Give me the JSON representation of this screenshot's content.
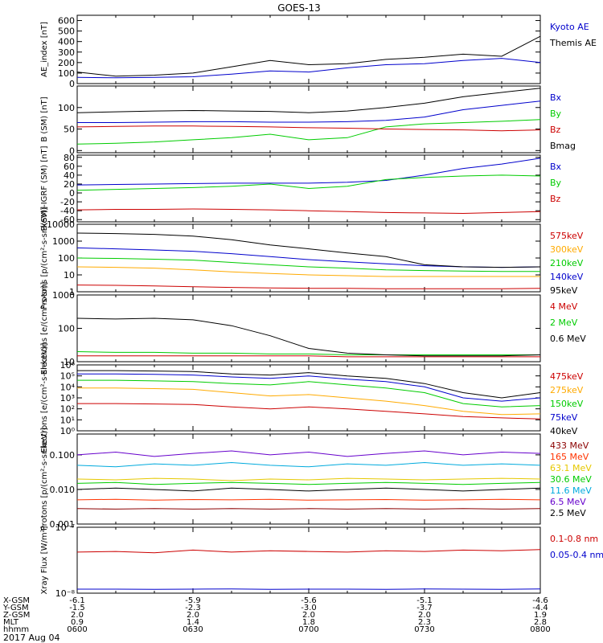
{
  "title": "GOES-13",
  "date_label": "2017 Aug 04",
  "bottom_axis": {
    "row_names": [
      "X-GSM",
      "Y-GSM",
      "Z-GSM",
      "MLT",
      "hhmm"
    ],
    "columns": [
      [
        "-6.1",
        "-1.5",
        "2.0",
        "0.9",
        "0600"
      ],
      [
        "-5.9",
        "-2.3",
        "2.0",
        "1.4",
        "0630"
      ],
      [
        "-5.6",
        "-3.0",
        "2.0",
        "1.8",
        "0700"
      ],
      [
        "-5.1",
        "-3.7",
        "2.0",
        "2.3",
        "0730"
      ],
      [
        "-4.6",
        "-4.4",
        "1.9",
        "2.8",
        "0800"
      ]
    ]
  },
  "chart_data": [
    {
      "type": "line",
      "ylabel": "AE_index [nT]",
      "scale": "linear",
      "ylim": [
        0,
        650
      ],
      "ticks": [
        0,
        100,
        200,
        300,
        400,
        500,
        600
      ],
      "tick_labels": [
        "0",
        "100",
        "200",
        "300",
        "400",
        "500",
        "600"
      ],
      "x": [
        "06:00",
        "06:10",
        "06:20",
        "06:30",
        "06:40",
        "06:50",
        "07:00",
        "07:10",
        "07:20",
        "07:30",
        "07:40",
        "07:50",
        "08:00"
      ],
      "series": [
        {
          "name": "Kyoto AE",
          "color": "#0000cc",
          "values": [
            60,
            55,
            60,
            65,
            90,
            120,
            110,
            150,
            180,
            190,
            220,
            240,
            200
          ]
        },
        {
          "name": "Themis AE",
          "color": "#000000",
          "values": [
            110,
            70,
            80,
            100,
            160,
            220,
            180,
            190,
            230,
            250,
            280,
            260,
            450
          ]
        }
      ]
    },
    {
      "type": "line",
      "ylabel": "B (SM) [nT]",
      "scale": "linear",
      "ylim": [
        -5,
        150
      ],
      "ticks": [
        0,
        50,
        100
      ],
      "tick_labels": [
        "0",
        "50",
        "100"
      ],
      "x": [
        "06:00",
        "06:10",
        "06:20",
        "06:30",
        "06:40",
        "06:50",
        "07:00",
        "07:10",
        "07:20",
        "07:30",
        "07:40",
        "07:50",
        "08:00"
      ],
      "series": [
        {
          "name": "Bx",
          "color": "#0000cc",
          "values": [
            65,
            65,
            66,
            67,
            67,
            66,
            66,
            67,
            70,
            78,
            95,
            105,
            115
          ]
        },
        {
          "name": "By",
          "color": "#00cc00",
          "values": [
            15,
            17,
            20,
            25,
            30,
            38,
            25,
            30,
            55,
            62,
            65,
            68,
            72
          ]
        },
        {
          "name": "Bz",
          "color": "#cc0000",
          "values": [
            55,
            56,
            57,
            57,
            56,
            55,
            53,
            52,
            50,
            49,
            48,
            46,
            48
          ]
        },
        {
          "name": "Bmag",
          "color": "#000000",
          "values": [
            88,
            90,
            92,
            93,
            92,
            91,
            88,
            92,
            100,
            110,
            125,
            135,
            145
          ]
        }
      ]
    },
    {
      "type": "line",
      "ylabel": "B(SM)-IGRF (SM) [nT]",
      "scale": "linear",
      "ylim": [
        -65,
        85
      ],
      "ticks": [
        -60,
        -40,
        -20,
        0,
        20,
        40,
        60,
        80
      ],
      "tick_labels": [
        "-60",
        "-40",
        "-20",
        "0",
        "20",
        "40",
        "60",
        "80"
      ],
      "x": [
        "06:00",
        "06:10",
        "06:20",
        "06:30",
        "06:40",
        "06:50",
        "07:00",
        "07:10",
        "07:20",
        "07:30",
        "07:40",
        "07:50",
        "08:00"
      ],
      "series": [
        {
          "name": "Bx",
          "color": "#0000cc",
          "values": [
            18,
            19,
            20,
            21,
            22,
            22,
            22,
            24,
            28,
            40,
            55,
            65,
            78
          ]
        },
        {
          "name": "By",
          "color": "#00cc00",
          "values": [
            6,
            8,
            10,
            12,
            15,
            20,
            10,
            15,
            30,
            35,
            38,
            40,
            38
          ]
        },
        {
          "name": "Bz",
          "color": "#cc0000",
          "values": [
            -38,
            -37,
            -37,
            -36,
            -37,
            -38,
            -40,
            -42,
            -44,
            -45,
            -46,
            -44,
            -42
          ]
        }
      ]
    },
    {
      "type": "line",
      "ylabel": "Protons [p/(cm²-s-sr-keV)]",
      "scale": "log",
      "ylim": [
        1,
        10000
      ],
      "ticks": [
        1,
        10,
        100,
        1000,
        10000
      ],
      "tick_labels": [
        "1",
        "10",
        "100",
        "1000",
        "10000"
      ],
      "x": [
        "06:00",
        "06:10",
        "06:20",
        "06:30",
        "06:40",
        "06:50",
        "07:00",
        "07:10",
        "07:20",
        "07:30",
        "07:40",
        "07:50",
        "08:00"
      ],
      "series": [
        {
          "name": "575keV",
          "color": "#cc0000",
          "values": [
            2.5,
            2.4,
            2.2,
            2.0,
            1.8,
            1.7,
            1.6,
            1.6,
            1.5,
            1.5,
            1.5,
            1.5,
            1.6
          ]
        },
        {
          "name": "300keV",
          "color": "#ffaa00",
          "values": [
            30,
            28,
            25,
            20,
            15,
            12,
            10,
            9,
            8,
            8,
            8,
            8,
            8
          ]
        },
        {
          "name": "210keV",
          "color": "#00cc00",
          "values": [
            100,
            95,
            85,
            75,
            55,
            40,
            30,
            25,
            20,
            18,
            17,
            16,
            16
          ]
        },
        {
          "name": "140keV",
          "color": "#0000cc",
          "values": [
            400,
            350,
            300,
            250,
            180,
            120,
            80,
            60,
            45,
            35,
            30,
            28,
            30
          ]
        },
        {
          "name": "95keV",
          "color": "#000000",
          "values": [
            3000,
            2800,
            2500,
            2000,
            1200,
            600,
            350,
            200,
            120,
            40,
            30,
            28,
            30
          ]
        }
      ]
    },
    {
      "type": "line",
      "ylabel": "Electrons [e/(cm²-s-sr)]",
      "scale": "log",
      "ylim": [
        10,
        1000
      ],
      "ticks": [
        10,
        100,
        1000
      ],
      "tick_labels": [
        "10",
        "100",
        "1000"
      ],
      "x": [
        "06:00",
        "06:10",
        "06:20",
        "06:30",
        "06:40",
        "06:50",
        "07:00",
        "07:10",
        "07:20",
        "07:30",
        "07:40",
        "07:50",
        "08:00"
      ],
      "series": [
        {
          "name": "4 MeV",
          "color": "#cc0000",
          "values": [
            15,
            15,
            15,
            15,
            15,
            15,
            15,
            14,
            14,
            14,
            14,
            14,
            14
          ]
        },
        {
          "name": "2 MeV",
          "color": "#00cc00",
          "values": [
            20,
            19,
            19,
            18,
            18,
            17,
            17,
            16,
            16,
            16,
            16,
            16,
            16
          ]
        },
        {
          "name": "0.6 MeV",
          "color": "#000000",
          "values": [
            200,
            190,
            200,
            180,
            120,
            60,
            25,
            18,
            16,
            15,
            15,
            15,
            16
          ]
        }
      ]
    },
    {
      "type": "line",
      "ylabel": "Electrons [e/(cm²-s-sr-keV)]",
      "scale": "log",
      "ylim": [
        1,
        1000000
      ],
      "ticks": [
        1,
        10,
        100,
        1000,
        10000,
        100000,
        1000000
      ],
      "tick_labels": [
        "10⁰",
        "10¹",
        "10²",
        "10³",
        "10⁴",
        "10⁵",
        "10⁶"
      ],
      "x": [
        "06:00",
        "06:10",
        "06:20",
        "06:30",
        "06:40",
        "06:50",
        "07:00",
        "07:10",
        "07:20",
        "07:30",
        "07:40",
        "07:50",
        "08:00"
      ],
      "series": [
        {
          "name": "475keV",
          "color": "#cc0000",
          "values": [
            300,
            300,
            280,
            250,
            150,
            100,
            150,
            100,
            60,
            35,
            20,
            15,
            12
          ]
        },
        {
          "name": "275keV",
          "color": "#ffaa00",
          "values": [
            8000,
            8000,
            7000,
            6000,
            3000,
            1500,
            2000,
            1000,
            500,
            200,
            60,
            30,
            35
          ]
        },
        {
          "name": "150keV",
          "color": "#00cc00",
          "values": [
            40000,
            40000,
            35000,
            30000,
            20000,
            15000,
            30000,
            15000,
            8000,
            3000,
            300,
            150,
            200
          ]
        },
        {
          "name": "75keV",
          "color": "#0000cc",
          "values": [
            150000,
            150000,
            140000,
            120000,
            80000,
            60000,
            100000,
            50000,
            30000,
            10000,
            1000,
            500,
            1000
          ]
        },
        {
          "name": "40keV",
          "color": "#000000",
          "values": [
            300000,
            300000,
            280000,
            250000,
            150000,
            120000,
            200000,
            100000,
            60000,
            20000,
            3000,
            1000,
            3000
          ]
        }
      ]
    },
    {
      "type": "line",
      "ylabel": "Protons [p/(cm²-s-sr-keV)]",
      "scale": "log",
      "ylim": [
        0.001,
        0.4
      ],
      "ticks": [
        0.001,
        0.01,
        0.1
      ],
      "tick_labels": [
        "0.001",
        "0.010",
        "0.100"
      ],
      "x": [
        "06:00",
        "06:10",
        "06:20",
        "06:30",
        "06:40",
        "06:50",
        "07:00",
        "07:10",
        "07:20",
        "07:30",
        "07:40",
        "07:50",
        "08:00"
      ],
      "series": [
        {
          "name": "433 MeV",
          "color": "#8b0000",
          "values": [
            0.0028,
            0.0027,
            0.0028,
            0.0027,
            0.0028,
            0.0027,
            0.0028,
            0.0027,
            0.0028,
            0.0027,
            0.0028,
            0.0027,
            0.0028
          ]
        },
        {
          "name": "165 MeV",
          "color": "#ff3300",
          "values": [
            0.005,
            0.0052,
            0.0049,
            0.0051,
            0.005,
            0.0052,
            0.0049,
            0.005,
            0.0051,
            0.0049,
            0.005,
            0.0052,
            0.005
          ]
        },
        {
          "name": "63.1 MeV",
          "color": "#e6c800",
          "values": [
            0.02,
            0.019,
            0.021,
            0.02,
            0.018,
            0.02,
            0.019,
            0.021,
            0.02,
            0.019,
            0.02,
            0.021,
            0.02
          ]
        },
        {
          "name": "30.6 MeV",
          "color": "#00cc00",
          "values": [
            0.015,
            0.016,
            0.014,
            0.015,
            0.016,
            0.015,
            0.014,
            0.015,
            0.016,
            0.015,
            0.014,
            0.015,
            0.016
          ]
        },
        {
          "name": "11.6 MeV",
          "color": "#00aadd",
          "values": [
            0.05,
            0.045,
            0.055,
            0.05,
            0.06,
            0.05,
            0.045,
            0.055,
            0.05,
            0.06,
            0.05,
            0.055,
            0.05
          ]
        },
        {
          "name": "6.5 MeV",
          "color": "#6600cc",
          "values": [
            0.1,
            0.12,
            0.09,
            0.11,
            0.13,
            0.1,
            0.12,
            0.09,
            0.11,
            0.13,
            0.1,
            0.12,
            0.11
          ]
        },
        {
          "name": "2.5 MeV",
          "color": "#000000",
          "values": [
            0.01,
            0.011,
            0.01,
            0.009,
            0.011,
            0.01,
            0.009,
            0.01,
            0.011,
            0.01,
            0.009,
            0.01,
            0.011
          ]
        }
      ]
    },
    {
      "type": "line",
      "ylabel": "Xray Flux [W/m²]",
      "scale": "log",
      "ylim": [
        1e-08,
        1e-07
      ],
      "ticks": [
        1e-08,
        1e-07
      ],
      "tick_labels": [
        "10⁻⁸",
        "10⁻⁷"
      ],
      "x": [
        "06:00",
        "06:10",
        "06:20",
        "06:30",
        "06:40",
        "06:50",
        "07:00",
        "07:10",
        "07:20",
        "07:30",
        "07:40",
        "07:50",
        "08:00"
      ],
      "series": [
        {
          "name": "0.1-0.8 nm",
          "color": "#cc0000",
          "values": [
            4.2e-08,
            4.3e-08,
            4.1e-08,
            4.5e-08,
            4.2e-08,
            4.4e-08,
            4.3e-08,
            4.2e-08,
            4.4e-08,
            4.3e-08,
            4.5e-08,
            4.4e-08,
            4.6e-08
          ]
        },
        {
          "name": "0.05-0.4 nm",
          "color": "#0000cc",
          "values": [
            1.15e-08,
            1.15e-08,
            1.14e-08,
            1.15e-08,
            1.16e-08,
            1.14e-08,
            1.15e-08,
            1.15e-08,
            1.14e-08,
            1.16e-08,
            1.15e-08,
            1.14e-08,
            1.16e-08
          ]
        }
      ]
    }
  ]
}
